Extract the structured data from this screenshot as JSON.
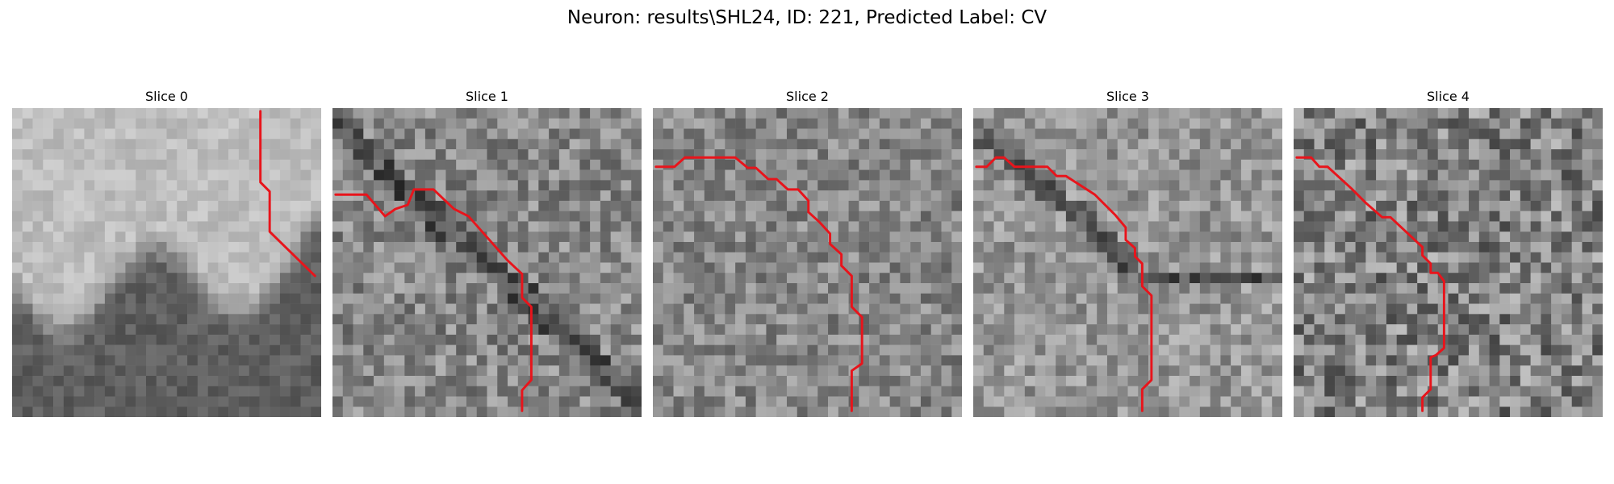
{
  "figure": {
    "title": "Neuron: results\\SHL24, ID: 221, Predicted Label: CV"
  },
  "slices": [
    {
      "title": "Slice 0",
      "image": "grayscale-em-patch"
    },
    {
      "title": "Slice 1",
      "image": "grayscale-em-patch"
    },
    {
      "title": "Slice 2",
      "image": "grayscale-em-patch"
    },
    {
      "title": "Slice 3",
      "image": "grayscale-em-patch"
    },
    {
      "title": "Slice 4",
      "image": "grayscale-em-patch"
    }
  ],
  "colors": {
    "background": "#ffffff",
    "contour": "#e8141b"
  }
}
